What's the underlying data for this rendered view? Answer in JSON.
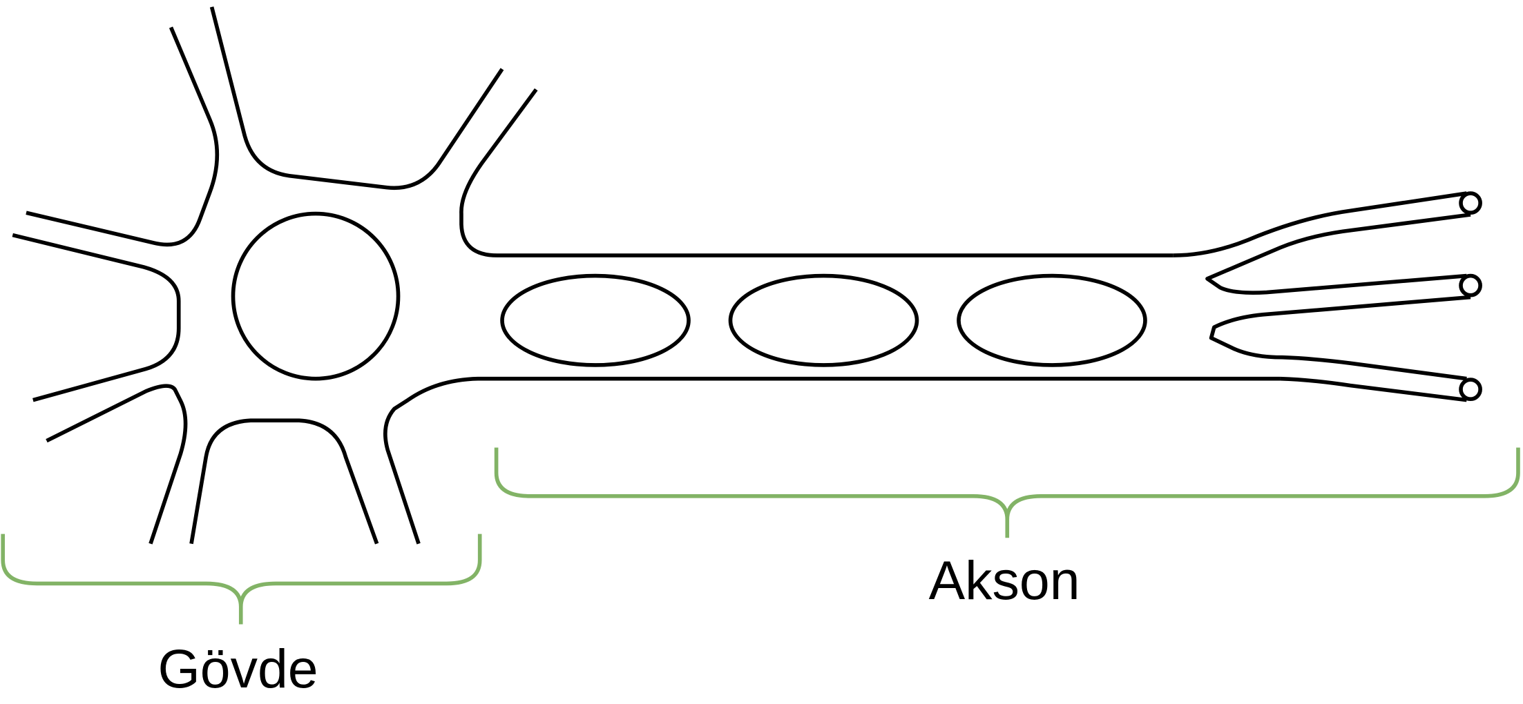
{
  "labels": {
    "soma": "Gövde",
    "axon": "Akson"
  },
  "colors": {
    "outline": "#000000",
    "brace": "#82b366",
    "background": "#ffffff"
  }
}
